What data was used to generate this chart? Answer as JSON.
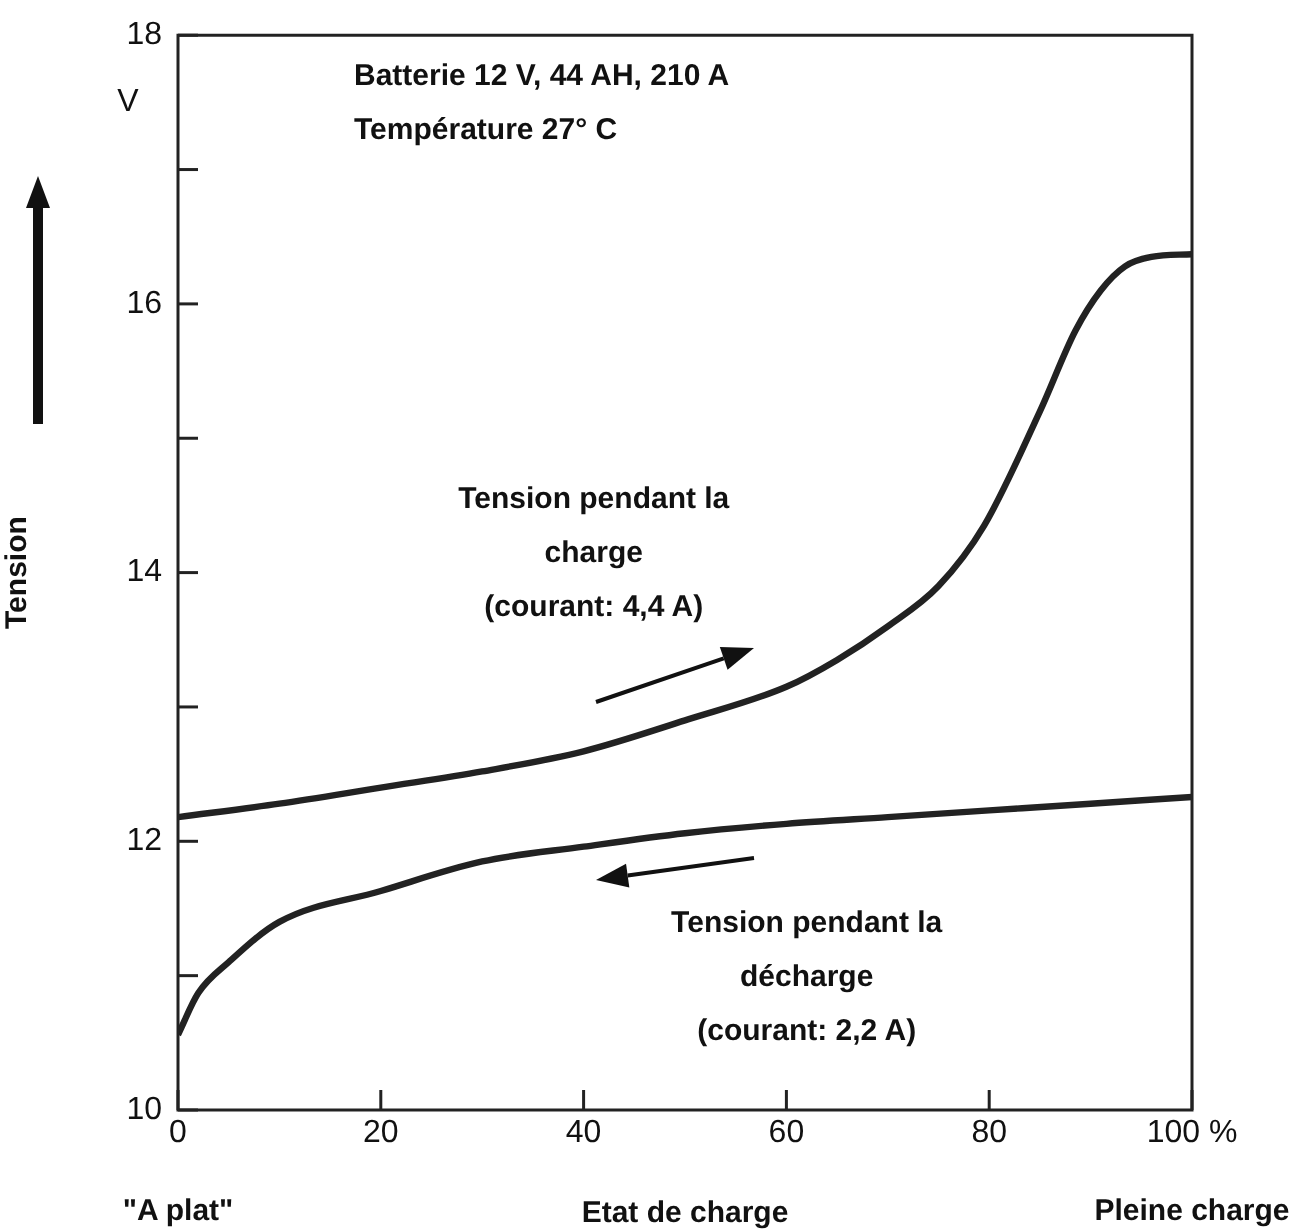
{
  "chart_data": {
    "type": "line",
    "title": "Batterie 12 V, 44 AH, 210 A",
    "subtitle": "Température 27° C",
    "xlabel": "Etat de charge",
    "ylabel": "Tension",
    "annotations": [
      "V",
      "\"A plat\"",
      "Pleine charge"
    ],
    "series": [
      {
        "name": "Tension pendant la\ncharge\n(courant: 4,4 A)",
        "color": "#222222",
        "x": [
          0,
          10,
          20,
          30,
          40,
          50,
          60,
          65,
          70,
          75,
          79.5,
          85,
          88.5,
          91,
          93.4,
          96,
          100
        ],
        "values": [
          12.18,
          12.28,
          12.4,
          12.52,
          12.67,
          12.9,
          13.15,
          13.35,
          13.6,
          13.9,
          14.35,
          15.2,
          15.8,
          16.1,
          16.28,
          16.35,
          16.37
        ]
      },
      {
        "name": "Tension pendant la\ndécharge\n(courant: 2,2 A)",
        "color": "#222222",
        "x": [
          0,
          2,
          5,
          10,
          20,
          30,
          40,
          50,
          60,
          70,
          80,
          90,
          100
        ],
        "values": [
          10.56,
          10.87,
          11.1,
          11.4,
          11.63,
          11.85,
          11.96,
          12.06,
          12.13,
          12.18,
          12.23,
          12.28,
          12.33
        ]
      }
    ],
    "xlim": [
      0,
      100
    ],
    "xticks": [
      0,
      20,
      40,
      60,
      80,
      {
        "value": 100,
        "label": "100 %"
      }
    ],
    "ylim": [
      10,
      18
    ],
    "yticks": [
      10,
      {
        "value": 11,
        "label": null
      },
      12,
      {
        "value": 13,
        "label": null
      },
      14,
      {
        "value": 15,
        "label": null
      },
      16,
      {
        "value": 17,
        "label": null
      },
      18
    ],
    "grid": false,
    "legend": false,
    "marker": "none",
    "line_style": "solid"
  }
}
